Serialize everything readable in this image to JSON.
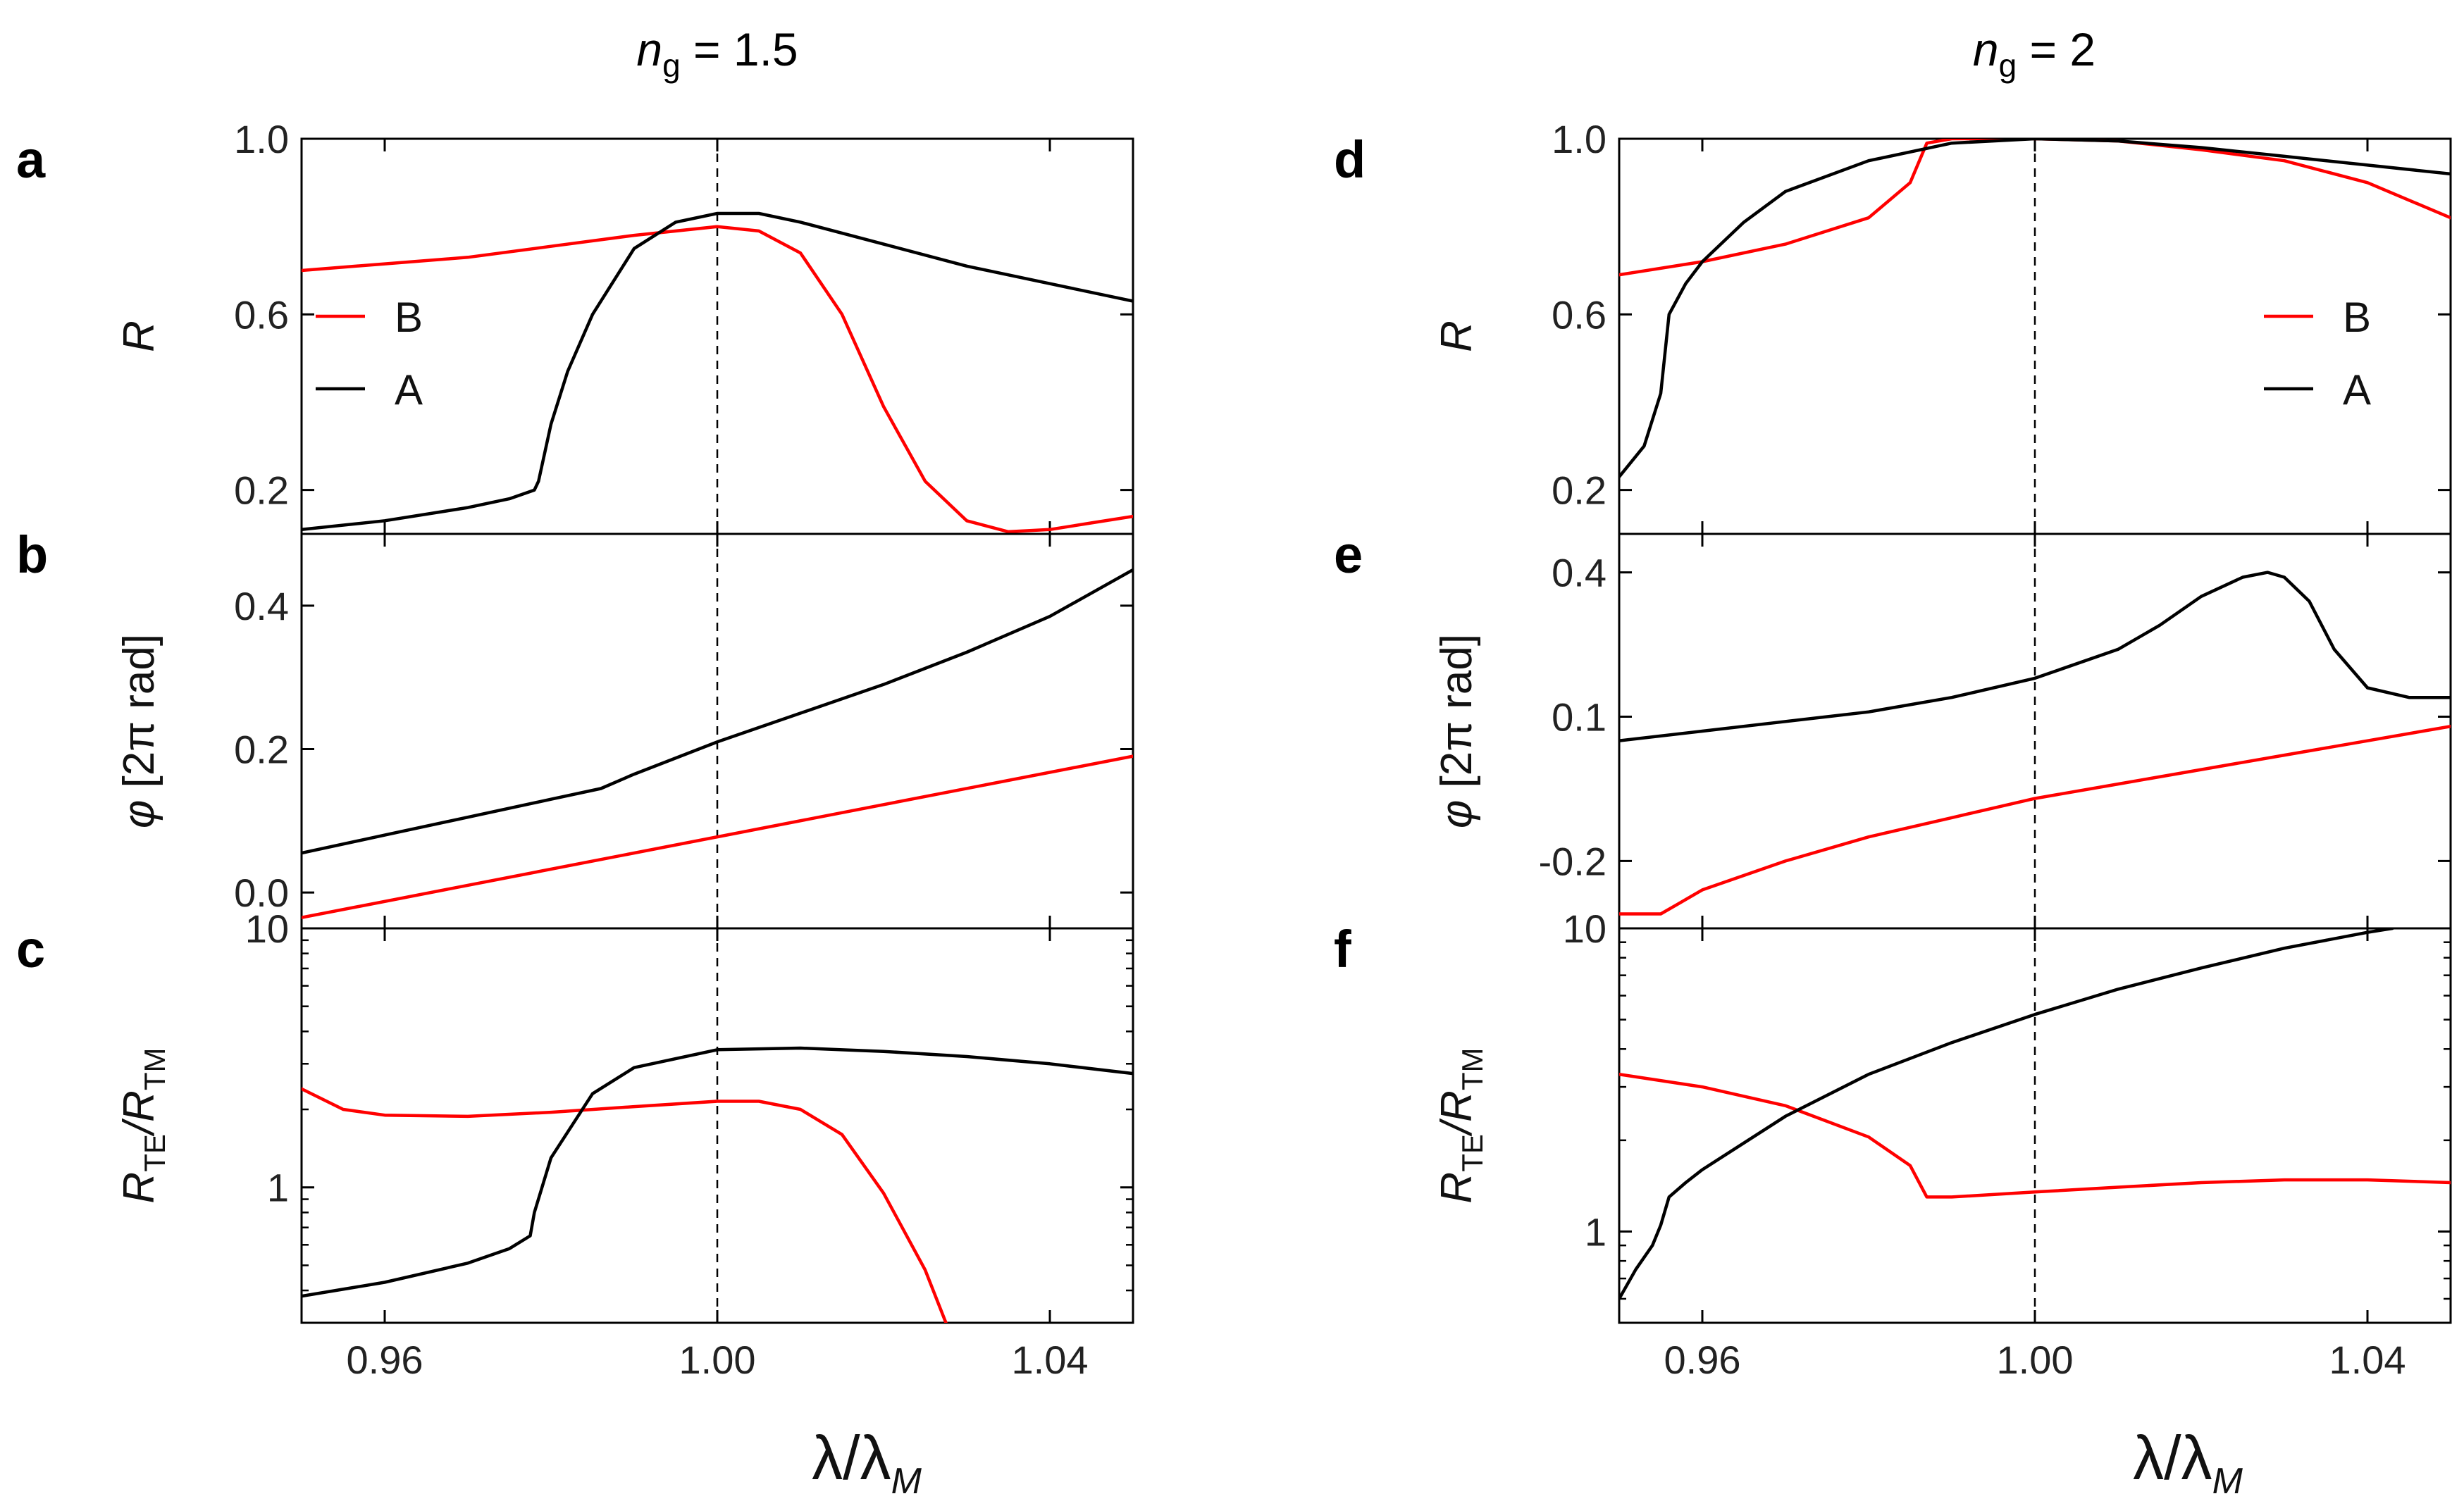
{
  "colors": {
    "A": "#000000",
    "B": "#ff0000",
    "axis": "#000000",
    "guide": "#000000"
  },
  "columns": [
    {
      "title_italic": "n",
      "title_sub": "g",
      "title_rest": " = 1.5"
    },
    {
      "title_italic": "n",
      "title_sub": "g",
      "title_rest": " = 2"
    }
  ],
  "xlabel": {
    "main": "λ/λ",
    "sub": "M"
  },
  "chart_data": [
    {
      "id": "a",
      "type": "line",
      "letter": "a",
      "column": 0,
      "row": 0,
      "ylabel": "R",
      "ylim": [
        0.1,
        1.0
      ],
      "yticks": [
        0.2,
        0.6,
        1.0
      ],
      "ytick_labels": [
        "0.2",
        "0.6",
        "1.0"
      ],
      "xlim": [
        0.95,
        1.05
      ],
      "xticks": [
        0.96,
        1.0,
        1.04
      ],
      "xtick_labels": [
        "0.96",
        "1.00",
        "1.04"
      ],
      "show_xticklabels": false,
      "vline": 1.0,
      "legend": {
        "position": "upper-left",
        "entries": [
          "B",
          "A"
        ]
      },
      "series": [
        {
          "name": "B",
          "x": [
            0.95,
            0.96,
            0.97,
            0.98,
            0.99,
            1.0,
            1.005,
            1.01,
            1.015,
            1.02,
            1.025,
            1.03,
            1.035,
            1.04,
            1.045,
            1.05
          ],
          "values": [
            0.7,
            0.715,
            0.73,
            0.755,
            0.78,
            0.8,
            0.79,
            0.74,
            0.6,
            0.39,
            0.22,
            0.13,
            0.105,
            0.11,
            0.125,
            0.14
          ]
        },
        {
          "name": "A",
          "x": [
            0.95,
            0.96,
            0.97,
            0.975,
            0.978,
            0.9785,
            0.98,
            0.982,
            0.985,
            0.988,
            0.99,
            0.995,
            1.0,
            1.005,
            1.01,
            1.02,
            1.03,
            1.04,
            1.05
          ],
          "values": [
            0.11,
            0.13,
            0.16,
            0.18,
            0.2,
            0.22,
            0.35,
            0.47,
            0.6,
            0.69,
            0.75,
            0.81,
            0.83,
            0.83,
            0.81,
            0.76,
            0.71,
            0.67,
            0.63
          ]
        }
      ]
    },
    {
      "id": "b",
      "type": "line",
      "letter": "b",
      "column": 0,
      "row": 1,
      "ylabel": "φ [2π rad]",
      "ylabel_symbol": "φ",
      "ylabel_rest": " [2π rad]",
      "ylim": [
        -0.05,
        0.5
      ],
      "yticks": [
        0.0,
        0.2,
        0.4
      ],
      "ytick_labels": [
        "0.0",
        "0.2",
        "0.4"
      ],
      "xlim": [
        0.95,
        1.05
      ],
      "xticks": [
        0.96,
        1.0,
        1.04
      ],
      "xtick_labels": [
        "0.96",
        "1.00",
        "1.04"
      ],
      "show_xticklabels": false,
      "vline": 1.0,
      "series": [
        {
          "name": "B",
          "x": [
            0.95,
            1.05
          ],
          "values": [
            -0.035,
            0.19
          ]
        },
        {
          "name": "A",
          "x": [
            0.95,
            0.96,
            0.97,
            0.98,
            0.986,
            0.988,
            0.99,
            1.0,
            1.01,
            1.02,
            1.03,
            1.04,
            1.05
          ],
          "values": [
            0.055,
            0.08,
            0.105,
            0.13,
            0.145,
            0.155,
            0.165,
            0.21,
            0.25,
            0.29,
            0.335,
            0.385,
            0.45
          ]
        }
      ]
    },
    {
      "id": "c",
      "type": "line",
      "letter": "c",
      "column": 0,
      "row": 2,
      "yscale": "log",
      "ylabel": "RTE/RTM",
      "ylabel_parts": [
        "R",
        "TE",
        "/R",
        "TM"
      ],
      "ylim": [
        0.3,
        10
      ],
      "yticks": [
        1,
        10
      ],
      "ytick_labels": [
        "1",
        "10"
      ],
      "xlim": [
        0.95,
        1.05
      ],
      "xticks": [
        0.96,
        1.0,
        1.04
      ],
      "xtick_labels": [
        "0.96",
        "1.00",
        "1.04"
      ],
      "show_xticklabels": true,
      "vline": 1.0,
      "series": [
        {
          "name": "B",
          "x": [
            0.95,
            0.955,
            0.96,
            0.97,
            0.98,
            0.99,
            1.0,
            1.005,
            1.01,
            1.015,
            1.02,
            1.025,
            1.0275
          ],
          "values": [
            2.4,
            2.0,
            1.9,
            1.88,
            1.95,
            2.05,
            2.15,
            2.15,
            2.0,
            1.6,
            0.95,
            0.48,
            0.3
          ]
        },
        {
          "name": "A",
          "x": [
            0.95,
            0.96,
            0.97,
            0.975,
            0.9775,
            0.978,
            0.98,
            0.985,
            0.99,
            1.0,
            1.01,
            1.02,
            1.03,
            1.04,
            1.05
          ],
          "values": [
            0.38,
            0.43,
            0.51,
            0.58,
            0.65,
            0.8,
            1.3,
            2.3,
            2.9,
            3.4,
            3.45,
            3.35,
            3.2,
            3.0,
            2.75
          ]
        }
      ]
    },
    {
      "id": "d",
      "type": "line",
      "letter": "d",
      "column": 1,
      "row": 0,
      "ylabel": "R",
      "ylim": [
        0.1,
        1.0
      ],
      "yticks": [
        0.2,
        0.6,
        1.0
      ],
      "ytick_labels": [
        "0.2",
        "0.6",
        "1.0"
      ],
      "xlim": [
        0.95,
        1.05
      ],
      "xticks": [
        0.96,
        1.0,
        1.04
      ],
      "xtick_labels": [
        "0.96",
        "1.00",
        "1.04"
      ],
      "show_xticklabels": false,
      "vline": 1.0,
      "legend": {
        "position": "upper-right",
        "entries": [
          "B",
          "A"
        ]
      },
      "series": [
        {
          "name": "B",
          "x": [
            0.95,
            0.96,
            0.97,
            0.98,
            0.985,
            0.987,
            0.99,
            1.0,
            1.01,
            1.02,
            1.03,
            1.04,
            1.05
          ],
          "values": [
            0.69,
            0.72,
            0.76,
            0.82,
            0.9,
            0.99,
            1.0,
            1.0,
            0.995,
            0.975,
            0.95,
            0.9,
            0.82
          ]
        },
        {
          "name": "A",
          "x": [
            0.95,
            0.953,
            0.955,
            0.956,
            0.958,
            0.96,
            0.965,
            0.97,
            0.98,
            0.99,
            1.0,
            1.01,
            1.02,
            1.03,
            1.04,
            1.05
          ],
          "values": [
            0.23,
            0.3,
            0.42,
            0.6,
            0.67,
            0.72,
            0.81,
            0.88,
            0.95,
            0.99,
            1.0,
            0.995,
            0.98,
            0.96,
            0.94,
            0.92
          ]
        }
      ]
    },
    {
      "id": "e",
      "type": "line",
      "letter": "e",
      "column": 1,
      "row": 1,
      "ylabel": "φ [2π rad]",
      "ylabel_symbol": "φ",
      "ylabel_rest": " [2π rad]",
      "ylim": [
        -0.34,
        0.48
      ],
      "yticks": [
        -0.2,
        0.1,
        0.4
      ],
      "ytick_labels": [
        "-0.2",
        "0.1",
        "0.4"
      ],
      "xlim": [
        0.95,
        1.05
      ],
      "xticks": [
        0.96,
        1.0,
        1.04
      ],
      "xtick_labels": [
        "0.96",
        "1.00",
        "1.04"
      ],
      "show_xticklabels": false,
      "vline": 1.0,
      "series": [
        {
          "name": "B",
          "x": [
            0.95,
            0.955,
            0.957,
            0.96,
            0.97,
            0.98,
            0.99,
            1.0,
            1.01,
            1.02,
            1.03,
            1.04,
            1.05
          ],
          "values": [
            -0.31,
            -0.31,
            -0.29,
            -0.26,
            -0.2,
            -0.15,
            -0.11,
            -0.07,
            -0.04,
            -0.01,
            0.02,
            0.05,
            0.08
          ]
        },
        {
          "name": "A",
          "x": [
            0.95,
            0.96,
            0.97,
            0.98,
            0.99,
            1.0,
            1.01,
            1.015,
            1.02,
            1.025,
            1.028,
            1.03,
            1.033,
            1.036,
            1.04,
            1.045,
            1.05
          ],
          "values": [
            0.05,
            0.07,
            0.09,
            0.11,
            0.14,
            0.18,
            0.24,
            0.29,
            0.35,
            0.39,
            0.4,
            0.39,
            0.34,
            0.24,
            0.16,
            0.14,
            0.14
          ]
        }
      ]
    },
    {
      "id": "f",
      "type": "line",
      "letter": "f",
      "column": 1,
      "row": 2,
      "yscale": "log",
      "ylabel": "RTE/RTM",
      "ylabel_parts": [
        "R",
        "TE",
        "/R",
        "TM"
      ],
      "ylim": [
        0.5,
        10
      ],
      "yticks": [
        1,
        10
      ],
      "ytick_labels": [
        "1",
        "10"
      ],
      "xlim": [
        0.95,
        1.05
      ],
      "xticks": [
        0.96,
        1.0,
        1.04
      ],
      "xtick_labels": [
        "0.96",
        "1.00",
        "1.04"
      ],
      "show_xticklabels": true,
      "vline": 1.0,
      "series": [
        {
          "name": "B",
          "x": [
            0.95,
            0.96,
            0.97,
            0.98,
            0.985,
            0.987,
            0.99,
            1.0,
            1.01,
            1.02,
            1.03,
            1.04,
            1.05
          ],
          "values": [
            3.3,
            3.0,
            2.6,
            2.05,
            1.65,
            1.3,
            1.3,
            1.35,
            1.4,
            1.45,
            1.48,
            1.48,
            1.45
          ]
        },
        {
          "name": "A",
          "x": [
            0.95,
            0.952,
            0.954,
            0.955,
            0.956,
            0.958,
            0.96,
            0.97,
            0.98,
            0.99,
            1.0,
            1.01,
            1.02,
            1.03,
            1.04,
            1.043
          ],
          "values": [
            0.6,
            0.75,
            0.9,
            1.05,
            1.3,
            1.45,
            1.6,
            2.4,
            3.3,
            4.2,
            5.2,
            6.3,
            7.4,
            8.6,
            9.7,
            10.0
          ]
        }
      ]
    }
  ]
}
